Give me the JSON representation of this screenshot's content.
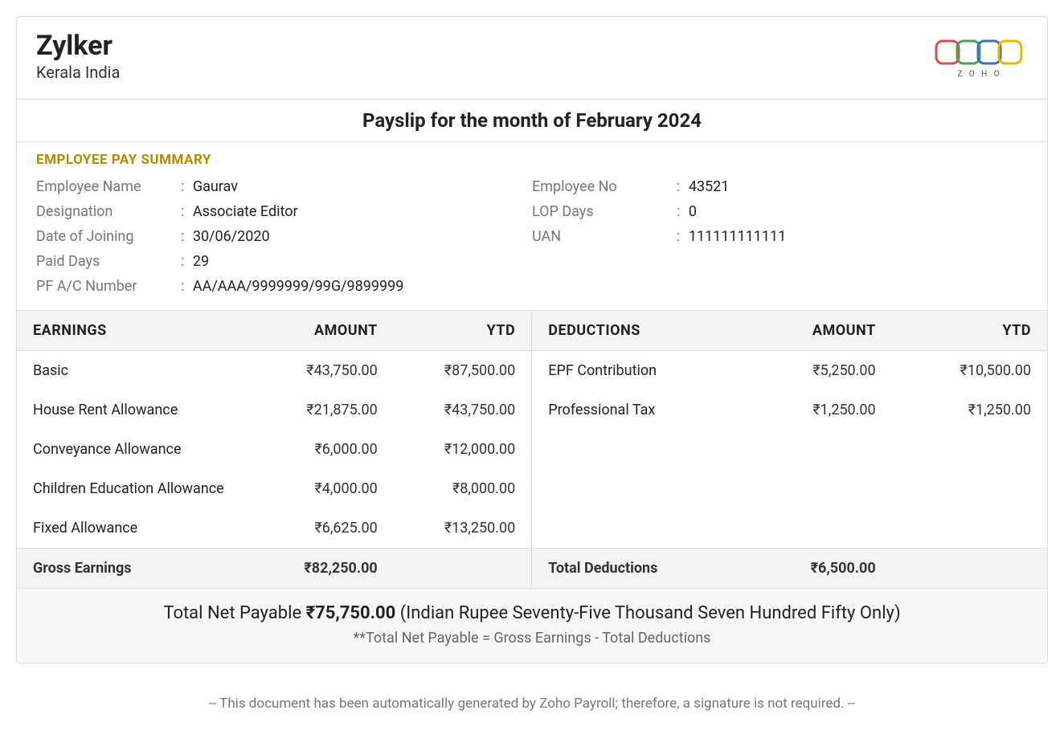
{
  "company": {
    "name": "Zylker",
    "location": "Kerala India"
  },
  "logo": {
    "text": "Z O H O",
    "ring_colors": [
      "#d94d4d",
      "#4da24d",
      "#3a6fbf",
      "#e6b800"
    ]
  },
  "title": "Payslip for the month of February 2024",
  "section_title": "EMPLOYEE PAY SUMMARY",
  "summary": {
    "left": [
      {
        "label": "Employee Name",
        "value": "Gaurav"
      },
      {
        "label": "Designation",
        "value": "Associate Editor"
      },
      {
        "label": "Date of Joining",
        "value": "30/06/2020"
      },
      {
        "label": "Paid Days",
        "value": "29"
      },
      {
        "label": "PF A/C Number",
        "value": "AA/AAA/9999999/99G/9899999"
      }
    ],
    "right": [
      {
        "label": "Employee No",
        "value": "43521"
      },
      {
        "label": "LOP Days",
        "value": "0"
      },
      {
        "label": "UAN",
        "value": "111111111111"
      }
    ]
  },
  "earnings": {
    "headers": {
      "name": "EARNINGS",
      "amount": "AMOUNT",
      "ytd": "YTD"
    },
    "rows": [
      {
        "name": "Basic",
        "amount": "₹43,750.00",
        "ytd": "₹87,500.00"
      },
      {
        "name": "House Rent Allowance",
        "amount": "₹21,875.00",
        "ytd": "₹43,750.00"
      },
      {
        "name": "Conveyance Allowance",
        "amount": "₹6,000.00",
        "ytd": "₹12,000.00"
      },
      {
        "name": "Children Education Allowance",
        "amount": "₹4,000.00",
        "ytd": "₹8,000.00"
      },
      {
        "name": "Fixed Allowance",
        "amount": "₹6,625.00",
        "ytd": "₹13,250.00"
      }
    ],
    "total": {
      "label": "Gross Earnings",
      "amount": "₹82,250.00",
      "ytd": ""
    }
  },
  "deductions": {
    "headers": {
      "name": "DEDUCTIONS",
      "amount": "AMOUNT",
      "ytd": "YTD"
    },
    "rows": [
      {
        "name": "EPF Contribution",
        "amount": "₹5,250.00",
        "ytd": "₹10,500.00"
      },
      {
        "name": "Professional Tax",
        "amount": "₹1,250.00",
        "ytd": "₹1,250.00"
      },
      {
        "name": "",
        "amount": "",
        "ytd": ""
      },
      {
        "name": "",
        "amount": "",
        "ytd": ""
      },
      {
        "name": "",
        "amount": "",
        "ytd": ""
      }
    ],
    "total": {
      "label": "Total Deductions",
      "amount": "₹6,500.00",
      "ytd": ""
    }
  },
  "net": {
    "prefix": "Total Net Payable ",
    "amount": "₹75,750.00",
    "words": " (Indian Rupee Seventy-Five Thousand Seven Hundred Fifty Only)",
    "sub": "**Total Net Payable = Gross Earnings - Total Deductions"
  },
  "footnote": "-- This document has been automatically generated by Zoho Payroll; therefore, a signature is not required. --",
  "colors": {
    "section_title": "#b58a00",
    "border": "#dddddd",
    "muted": "#777777",
    "header_bg": "#f4f4f4",
    "net_bg": "#f8f8f8"
  }
}
